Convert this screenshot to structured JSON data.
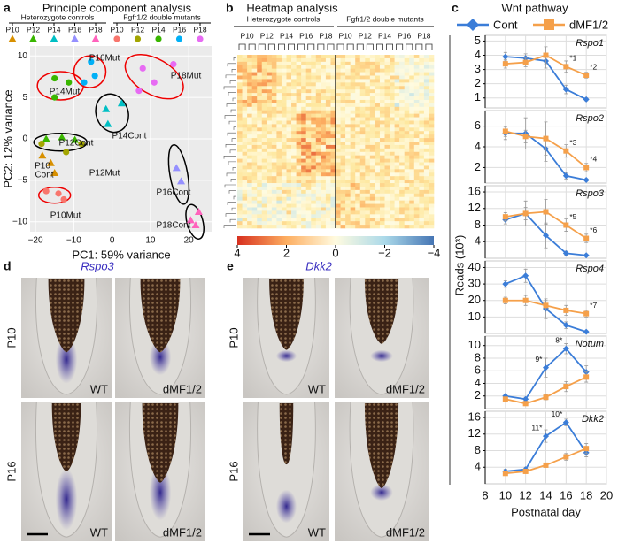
{
  "panels": {
    "a": {
      "letter": "a",
      "title": "Principle component analysis",
      "groups": [
        "Heterozygote controls",
        "Fgfr1/2 double mutants"
      ]
    },
    "b": {
      "letter": "b",
      "title": "Heatmap analysis",
      "groups": [
        "Heterozygote controls",
        "Fgfr1/2 double mutants"
      ],
      "days": [
        "P10",
        "P12",
        "P14",
        "P16",
        "P18",
        "P10",
        "P12",
        "P14",
        "P16",
        "P18"
      ],
      "colorbar": {
        "lim": [
          4,
          -4
        ],
        "ticks": [
          4,
          2,
          0,
          {
            "value": -2,
            "label": "−2"
          },
          {
            "value": -4,
            "label": "−4"
          }
        ]
      }
    },
    "c": {
      "letter": "c",
      "title": "Wnt pathway",
      "ylabel": "Reads (10³)",
      "xlabel": "Postnatal day"
    },
    "d": {
      "letter": "d",
      "gene": "Rspo3",
      "rows": [
        "P10",
        "P16"
      ],
      "cols": [
        "WT",
        "dMF1/2"
      ]
    },
    "e": {
      "letter": "e",
      "gene": "Dkk2",
      "rows": [
        "P10",
        "P16"
      ],
      "cols": [
        "WT",
        "dMF1/2"
      ]
    }
  },
  "chart_data": [
    {
      "type": "scatter",
      "xlabel": "PC1: 59% variance",
      "ylabel": "PC2: 12% variance",
      "xlim": [
        -21.4,
        26.2
      ],
      "ylim": [
        -11.2,
        11.2
      ],
      "xticks": [
        {
          "value": -20,
          "label": "−20"
        },
        {
          "value": -10,
          "label": "−10"
        },
        0,
        10,
        20
      ],
      "yticks": [
        {
          "value": -10,
          "label": "−10"
        },
        {
          "value": -5,
          "label": "−5"
        },
        0,
        5,
        10
      ],
      "grid": true,
      "series": [
        {
          "name": "P10",
          "marker": "triangle",
          "color": "#D89000",
          "x": [
            -18.2,
            -16,
            -15
          ],
          "y": [
            -2,
            -2.9,
            -4.1
          ]
        },
        {
          "name": "P12",
          "marker": "triangle",
          "color": "#39B600",
          "x": [
            -17.2,
            -13.1,
            -9.7
          ],
          "y": [
            0,
            0.2,
            -0.1
          ]
        },
        {
          "name": "P14",
          "marker": "triangle",
          "color": "#00BFC4",
          "x": [
            -1.6,
            2.5,
            -1.1
          ],
          "y": [
            3.6,
            4.3,
            1.8
          ]
        },
        {
          "name": "P16",
          "marker": "triangle",
          "color": "#9590FF",
          "x": [
            16.8,
            18
          ],
          "y": [
            -3.5,
            -5.1
          ]
        },
        {
          "name": "P18",
          "marker": "triangle",
          "color": "#FF62BC",
          "x": [
            20.5,
            21.8,
            22.6
          ],
          "y": [
            -9.8,
            -10.4,
            -8.8
          ]
        },
        {
          "name": "P10",
          "marker": "circle",
          "color": "#F8766D",
          "x": [
            -17.2,
            -14,
            -12.6
          ],
          "y": [
            -6.3,
            -6.6,
            -7.3
          ]
        },
        {
          "name": "P12",
          "marker": "circle",
          "color": "#A3A500",
          "x": [
            -18.4,
            -12,
            -8
          ],
          "y": [
            -0.6,
            -1.6,
            -0.6
          ]
        },
        {
          "name": "P14",
          "marker": "circle",
          "color": "#39B600",
          "x": [
            -15,
            -11.3,
            -15
          ],
          "y": [
            7.3,
            6.8,
            5
          ]
        },
        {
          "name": "P16",
          "marker": "circle",
          "color": "#00B0F6",
          "x": [
            -5.5,
            -4.5,
            -7.3
          ],
          "y": [
            9.3,
            7.6,
            6.8
          ]
        },
        {
          "name": "P18",
          "marker": "circle",
          "color": "#E76BF3",
          "x": [
            8,
            11,
            7,
            16
          ],
          "y": [
            8.5,
            6.8,
            5.8,
            9
          ]
        }
      ],
      "annotations": [
        {
          "text": "P16Mut",
          "color": "#00B0F6"
        },
        {
          "text": "P18Mut",
          "color": "#E76BF3"
        },
        {
          "text": "P14Mut",
          "color": "#39B600"
        },
        {
          "text": "P14Cont",
          "color": "#00BFC4"
        },
        {
          "text": "P12Cont",
          "color": "#39B600"
        },
        {
          "text": "P12Mut",
          "color": "#A3A500"
        },
        {
          "text": "P10",
          "color": "#D89000"
        },
        {
          "text": "Cont",
          "color": "#D89000"
        },
        {
          "text": "P16Cont",
          "color": "#9590FF"
        },
        {
          "text": "P10Mut",
          "color": "#F8766D"
        },
        {
          "text": "P18Cont",
          "color": "#FF62BC"
        }
      ]
    },
    {
      "type": "line",
      "title": "Rspo1",
      "x": [
        10,
        12,
        14,
        16,
        18
      ],
      "xlim": [
        8,
        20
      ],
      "xticks": [
        8,
        10,
        12,
        14,
        16,
        18,
        20
      ],
      "ylim": [
        0.3,
        5.4
      ],
      "yticks": [
        1,
        2,
        3,
        4,
        5
      ],
      "grid": true,
      "series": [
        {
          "name": "Cont",
          "color": "#3b7dd8",
          "marker": "diamond",
          "values": [
            3.9,
            3.8,
            3.6,
            1.6,
            0.9
          ],
          "errors": [
            0.3,
            0.3,
            0.5,
            0.3,
            0.1
          ]
        },
        {
          "name": "dMF1/2",
          "color": "#f5a04a",
          "marker": "square",
          "values": [
            3.4,
            3.5,
            4.0,
            3.2,
            2.6
          ],
          "errors": [
            0.3,
            0.3,
            0.6,
            0.4,
            0.2
          ]
        }
      ],
      "annotations": [
        "*1",
        "*2"
      ]
    },
    {
      "type": "line",
      "title": "Rspo2",
      "x": [
        10,
        12,
        14,
        16,
        18
      ],
      "xlim": [
        8,
        20
      ],
      "xticks": [
        8,
        10,
        12,
        14,
        16,
        18,
        20
      ],
      "ylim": [
        0.5,
        7.5
      ],
      "yticks": [
        2,
        4,
        6
      ],
      "grid": true,
      "series": [
        {
          "name": "Cont",
          "color": "#3b7dd8",
          "marker": "diamond",
          "values": [
            5.3,
            5.3,
            3.8,
            1.2,
            0.8
          ],
          "errors": [
            0.6,
            1.5,
            1.2,
            0.3,
            0.1
          ]
        },
        {
          "name": "dMF1/2",
          "color": "#f5a04a",
          "marker": "square",
          "values": [
            5.5,
            5.0,
            4.8,
            3.6,
            2.0
          ],
          "errors": [
            0.5,
            0.6,
            1.6,
            0.6,
            0.4
          ]
        }
      ],
      "annotations": [
        "*3",
        "*4"
      ]
    },
    {
      "type": "line",
      "title": "Rspo3",
      "x": [
        10,
        12,
        14,
        16,
        18
      ],
      "xlim": [
        8,
        20
      ],
      "xticks": [
        8,
        10,
        12,
        14,
        16,
        18,
        20
      ],
      "ylim": [
        0,
        17.5
      ],
      "yticks": [
        4,
        8,
        12,
        16
      ],
      "grid": true,
      "series": [
        {
          "name": "Cont",
          "color": "#3b7dd8",
          "marker": "diamond",
          "values": [
            9.3,
            10.8,
            5.5,
            1.2,
            0.7
          ],
          "errors": [
            1,
            1.5,
            3,
            0.5,
            0.2
          ]
        },
        {
          "name": "dMF1/2",
          "color": "#f5a04a",
          "marker": "square",
          "values": [
            10,
            10.8,
            11.2,
            8,
            4.8
          ],
          "errors": [
            1,
            3,
            3,
            1.5,
            1
          ]
        }
      ],
      "annotations": [
        "*5",
        "*6"
      ]
    },
    {
      "type": "line",
      "title": "Rspo4",
      "x": [
        10,
        12,
        14,
        16,
        18
      ],
      "xlim": [
        8,
        20
      ],
      "xticks": [
        8,
        10,
        12,
        14,
        16,
        18,
        20
      ],
      "ylim": [
        0,
        44
      ],
      "yticks": [
        10,
        20,
        30,
        40
      ],
      "grid": true,
      "series": [
        {
          "name": "Cont",
          "color": "#3b7dd8",
          "marker": "diamond",
          "values": [
            30,
            35,
            15,
            5,
            1
          ],
          "errors": [
            2,
            4,
            6,
            2,
            0.5
          ]
        },
        {
          "name": "dMF1/2",
          "color": "#f5a04a",
          "marker": "square",
          "values": [
            20,
            20,
            17,
            14,
            12
          ],
          "errors": [
            2,
            3,
            3,
            3,
            2
          ]
        }
      ],
      "annotations": [
        "*7"
      ]
    },
    {
      "type": "line",
      "title": "Notum",
      "x": [
        10,
        12,
        14,
        16,
        18
      ],
      "xlim": [
        8,
        20
      ],
      "xticks": [
        8,
        10,
        12,
        14,
        16,
        18,
        20
      ],
      "ylim": [
        0,
        11.5
      ],
      "yticks": [
        2,
        4,
        6,
        8,
        10
      ],
      "grid": true,
      "series": [
        {
          "name": "Cont",
          "color": "#3b7dd8",
          "marker": "diamond",
          "values": [
            2,
            1.5,
            6.5,
            9.5,
            5.8
          ],
          "errors": [
            0.3,
            0.3,
            1.5,
            0.8,
            1
          ]
        },
        {
          "name": "dMF1/2",
          "color": "#f5a04a",
          "marker": "square",
          "values": [
            1.5,
            0.8,
            1.8,
            3.5,
            5.0
          ],
          "errors": [
            0.2,
            0.2,
            0.4,
            0.8,
            0.8
          ]
        }
      ],
      "annotations": [
        "9*",
        "8*"
      ]
    },
    {
      "type": "line",
      "title": "Dkk2",
      "x": [
        10,
        12,
        14,
        16,
        18
      ],
      "xlim": [
        8,
        20
      ],
      "xticks": [
        8,
        10,
        12,
        14,
        16,
        18,
        20
      ],
      "ylim": [
        0,
        17.5
      ],
      "yticks": [
        4,
        8,
        12,
        16
      ],
      "grid": true,
      "series": [
        {
          "name": "Cont",
          "color": "#3b7dd8",
          "marker": "diamond",
          "values": [
            3,
            3.5,
            11.5,
            14.8,
            7.5
          ],
          "errors": [
            0.5,
            0.5,
            1.5,
            0.8,
            1
          ]
        },
        {
          "name": "dMF1/2",
          "color": "#f5a04a",
          "marker": "square",
          "values": [
            2.5,
            3,
            4.5,
            6.5,
            8.5
          ],
          "errors": [
            0.4,
            0.4,
            0.5,
            0.8,
            1.2
          ]
        }
      ],
      "annotations": [
        "11*",
        "10*"
      ]
    }
  ]
}
